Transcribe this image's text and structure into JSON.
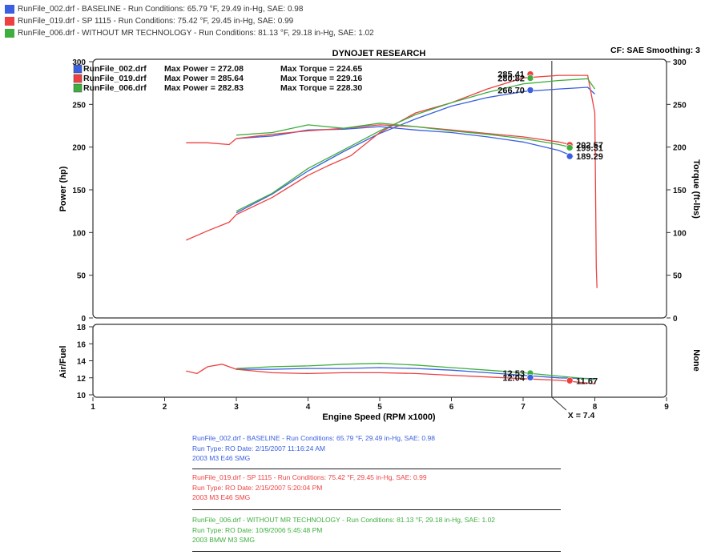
{
  "legend": [
    {
      "text": "RunFile_002.drf - BASELINE  -  Run Conditions: 65.79 °F, 29.49 in-Hg, SAE: 0.98",
      "color": "#3a5fe0"
    },
    {
      "text": "RunFile_019.drf - SP 1115  -  Run Conditions: 75.42 °F, 29.45 in-Hg, SAE: 0.99",
      "color": "#ee4040"
    },
    {
      "text": "RunFile_006.drf - WITHOUT MR TECHNOLOGY  -  Run Conditions: 81.13 °F, 29.18 in-Hg, SAE: 1.02",
      "color": "#3fae3f"
    }
  ],
  "header": {
    "title": "DYNOJET RESEARCH",
    "cf": "CF: SAE  Smoothing: 3"
  },
  "chart_data": [
    {
      "type": "line",
      "title": "DYNOJET RESEARCH",
      "xlabel": "Engine Speed (RPM x1000)",
      "ylabel": "Power (hp)",
      "y2label": "Torque (ft-lbs)",
      "xlim": [
        1,
        9
      ],
      "ylim": [
        0,
        300
      ],
      "y2lim": [
        0,
        300
      ],
      "xticks": [
        "1",
        "2",
        "3",
        "4",
        "5",
        "6",
        "7",
        "8",
        "9"
      ],
      "yticks": [
        "0",
        "50",
        "100",
        "150",
        "200",
        "250",
        "300"
      ],
      "y2ticks": [
        "0",
        "50",
        "100",
        "150",
        "200",
        "250",
        "300"
      ],
      "grid": false,
      "cursor_x": 7.4,
      "cursor_label": "X = 7.4",
      "max_table": [
        {
          "file": "RunFile_002.drf",
          "power_label": "Max Power = 272.08",
          "torque_label": "Max Torque = 224.65",
          "color": "#3a5fe0"
        },
        {
          "file": "RunFile_019.drf",
          "power_label": "Max Power = 285.64",
          "torque_label": "Max Torque = 229.16",
          "color": "#ee4040"
        },
        {
          "file": "RunFile_006.drf",
          "power_label": "Max Power = 282.83",
          "torque_label": "Max Torque = 228.30",
          "color": "#3fae3f"
        }
      ],
      "series": [
        {
          "name": "RunFile_002.drf",
          "kind": "power",
          "color": "#3a5fe0",
          "x": [
            3.0,
            3.5,
            4.0,
            4.5,
            5.0,
            5.5,
            6.0,
            6.5,
            7.0,
            7.5,
            7.9,
            8.0
          ],
          "y": [
            123,
            145,
            172,
            195,
            216,
            233,
            248,
            258,
            265,
            268,
            270,
            262
          ]
        },
        {
          "name": "RunFile_019.drf",
          "kind": "power",
          "color": "#ee4040",
          "x": [
            2.3,
            2.6,
            2.9,
            3.0,
            3.5,
            4.0,
            4.3,
            4.6,
            5.0,
            5.5,
            6.0,
            6.5,
            7.0,
            7.5,
            7.9,
            8.0,
            8.02,
            8.03
          ],
          "y": [
            91,
            102,
            112,
            121,
            141,
            167,
            179,
            190,
            217,
            240,
            252,
            268,
            281,
            284,
            284,
            240,
            60,
            35
          ]
        },
        {
          "name": "RunFile_006.drf",
          "kind": "power",
          "color": "#3fae3f",
          "x": [
            3.0,
            3.5,
            4.0,
            4.5,
            5.0,
            5.5,
            6.0,
            6.5,
            7.0,
            7.5,
            7.9,
            8.0
          ],
          "y": [
            125,
            146,
            175,
            197,
            219,
            238,
            252,
            264,
            274,
            278,
            280,
            268
          ]
        },
        {
          "name": "RunFile_002.drf",
          "kind": "torque",
          "color": "#3a5fe0",
          "x": [
            3.0,
            3.5,
            4.0,
            4.5,
            5.0,
            5.5,
            6.0,
            6.5,
            7.0,
            7.5,
            7.7
          ],
          "y": [
            210,
            213,
            220,
            221,
            224,
            220,
            217,
            212,
            206,
            196,
            189
          ]
        },
        {
          "name": "RunFile_019.drf",
          "kind": "torque",
          "color": "#ee4040",
          "x": [
            2.3,
            2.6,
            2.9,
            3.0,
            3.5,
            4.0,
            4.5,
            5.0,
            5.5,
            6.0,
            6.5,
            7.0,
            7.5,
            7.7
          ],
          "y": [
            205,
            205,
            203,
            210,
            215,
            219,
            222,
            226,
            224,
            220,
            216,
            212,
            206,
            202
          ]
        },
        {
          "name": "RunFile_006.drf",
          "kind": "torque",
          "color": "#3fae3f",
          "x": [
            3.0,
            3.5,
            4.0,
            4.5,
            5.0,
            5.5,
            6.0,
            6.5,
            7.0,
            7.5,
            7.7
          ],
          "y": [
            214,
            217,
            226,
            222,
            228,
            224,
            219,
            215,
            210,
            203,
            199
          ]
        }
      ],
      "markers": [
        {
          "x": 7.1,
          "y": 285.41,
          "label": "285.41",
          "color": "#ee4040",
          "side": "left"
        },
        {
          "x": 7.1,
          "y": 280.82,
          "label": "280.82",
          "color": "#3fae3f",
          "side": "left"
        },
        {
          "x": 7.1,
          "y": 266.7,
          "label": "266.70",
          "color": "#3a5fe0",
          "side": "left"
        },
        {
          "x": 7.65,
          "y": 202.57,
          "label": "202.57",
          "color": "#ee4040",
          "side": "right"
        },
        {
          "x": 7.65,
          "y": 199.31,
          "label": "199.31",
          "color": "#3fae3f",
          "side": "right"
        },
        {
          "x": 7.65,
          "y": 189.29,
          "label": "189.29",
          "color": "#3a5fe0",
          "side": "right"
        }
      ]
    },
    {
      "type": "line",
      "xlabel": "Engine Speed (RPM x1000)",
      "ylabel": "Air/Fuel",
      "y2label": "None",
      "xlim": [
        1,
        9
      ],
      "ylim": [
        10,
        18
      ],
      "yticks": [
        "10",
        "12",
        "14",
        "16",
        "18"
      ],
      "grid": false,
      "series": [
        {
          "name": "RunFile_002.drf",
          "color": "#3a5fe0",
          "x": [
            3.0,
            3.5,
            4.0,
            4.5,
            5.0,
            5.5,
            6.0,
            6.5,
            7.0,
            7.5,
            8.0
          ],
          "y": [
            13.0,
            13.0,
            13.1,
            13.1,
            13.2,
            13.1,
            12.9,
            12.6,
            12.3,
            12.0,
            11.9
          ]
        },
        {
          "name": "RunFile_019.drf",
          "color": "#ee4040",
          "x": [
            2.3,
            2.45,
            2.6,
            2.8,
            3.0,
            3.5,
            4.0,
            4.5,
            5.0,
            5.5,
            6.0,
            6.5,
            7.0,
            7.5,
            8.0
          ],
          "y": [
            12.8,
            12.5,
            13.3,
            13.6,
            13.0,
            12.6,
            12.5,
            12.6,
            12.6,
            12.5,
            12.3,
            12.1,
            11.9,
            11.7,
            11.3
          ]
        },
        {
          "name": "RunFile_006.drf",
          "color": "#3fae3f",
          "x": [
            3.0,
            3.5,
            4.0,
            4.5,
            5.0,
            5.5,
            6.0,
            6.5,
            7.0,
            7.5,
            8.0
          ],
          "y": [
            13.1,
            13.3,
            13.4,
            13.6,
            13.7,
            13.5,
            13.2,
            12.9,
            12.6,
            12.2,
            11.8
          ]
        }
      ],
      "markers": [
        {
          "x": 7.1,
          "y": 12.53,
          "label": "12.53",
          "color": "#3fae3f",
          "side": "left"
        },
        {
          "x": 7.1,
          "y": 12.04,
          "label": "12.04",
          "color": "#3a5fe0",
          "side": "left"
        },
        {
          "x": 7.65,
          "y": 11.67,
          "label": "11.67",
          "color": "#ee4040",
          "side": "right"
        }
      ]
    }
  ],
  "notes": [
    {
      "color": "#3a5fe0",
      "lines": [
        "RunFile_002.drf - BASELINE  -  Run Conditions: 65.79 °F, 29.49 in-Hg, SAE: 0.98",
        "Run Type: RO  Date: 2/15/2007 11:16:24 AM",
        "2003 M3 E46 SMG"
      ]
    },
    {
      "color": "#ee4040",
      "lines": [
        "RunFile_019.drf - SP 1115  -  Run Conditions: 75.42 °F, 29.45 in-Hg, SAE: 0.99",
        "Run Type: RO  Date: 2/15/2007 5:20:04 PM",
        "2003 M3 E46 SMG"
      ]
    },
    {
      "color": "#3fae3f",
      "lines": [
        "RunFile_006.drf - WITHOUT MR TECHNOLOGY  -  Run Conditions: 81.13 °F, 29.18 in-Hg, SAE: 1.02",
        "Run Type: RO  Date: 10/9/2006 5:45:48 PM",
        "2003 BMW M3 SMG"
      ]
    }
  ]
}
